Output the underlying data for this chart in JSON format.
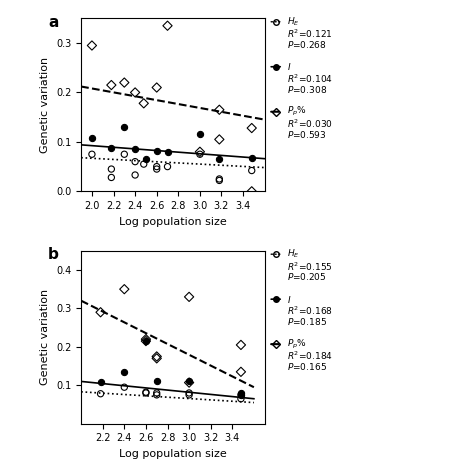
{
  "panel_a": {
    "He_x": [
      2.0,
      2.18,
      2.18,
      2.3,
      2.4,
      2.4,
      2.48,
      2.6,
      2.6,
      2.7,
      3.0,
      3.18,
      3.18,
      3.48
    ],
    "He_y": [
      0.075,
      0.045,
      0.028,
      0.075,
      0.06,
      0.033,
      0.055,
      0.05,
      0.045,
      0.05,
      0.075,
      0.025,
      0.022,
      0.042
    ],
    "I_x": [
      2.0,
      2.18,
      2.3,
      2.4,
      2.5,
      2.6,
      2.7,
      3.0,
      3.18,
      3.48
    ],
    "I_y": [
      0.108,
      0.088,
      0.13,
      0.085,
      0.065,
      0.082,
      0.08,
      0.115,
      0.065,
      0.068
    ],
    "Pp_x": [
      2.0,
      2.18,
      2.3,
      2.4,
      2.48,
      2.6,
      2.7,
      3.0,
      3.18,
      3.18,
      3.48,
      3.48
    ],
    "Pp_y": [
      0.295,
      0.215,
      0.22,
      0.2,
      0.178,
      0.21,
      0.335,
      0.08,
      0.165,
      0.105,
      0.128,
      0.0
    ],
    "He_line": {
      "x0": 1.9,
      "x1": 3.6,
      "y0": 0.068,
      "y1": 0.048
    },
    "I_line": {
      "x0": 1.9,
      "x1": 3.6,
      "y0": 0.094,
      "y1": 0.066
    },
    "Pp_line": {
      "x0": 1.9,
      "x1": 3.6,
      "y0": 0.212,
      "y1": 0.145
    },
    "ylim": [
      0.0,
      0.35
    ],
    "yticks": [
      0.0,
      0.1,
      0.2,
      0.3
    ],
    "xlim": [
      1.9,
      3.6
    ],
    "xticks": [
      2.0,
      2.2,
      2.4,
      2.6,
      2.8,
      3.0,
      3.2,
      3.4
    ],
    "xlabel": "Log population size",
    "ylabel": "Genetic variation",
    "label": "a",
    "legend": {
      "He_label": "$H_E$",
      "He_R2": "$R^2$=0.121",
      "He_P": "$P$=0.268",
      "I_label": "$I$",
      "I_R2": "$R^2$=0.104",
      "I_P": "$P$=0.308",
      "Pp_label": "$\\diamond P_p$%",
      "Pp_R2": "$R^2$=0.030",
      "Pp_P": "$P$=0.593"
    }
  },
  "panel_b": {
    "He_x": [
      2.18,
      2.4,
      2.6,
      2.6,
      2.7,
      2.7,
      3.0,
      3.0,
      3.48,
      3.48
    ],
    "He_y": [
      0.078,
      0.095,
      0.082,
      0.08,
      0.08,
      0.075,
      0.08,
      0.075,
      0.075,
      0.065
    ],
    "I_x": [
      2.18,
      2.4,
      2.6,
      2.7,
      3.0,
      3.48,
      3.48
    ],
    "I_y": [
      0.108,
      0.135,
      0.215,
      0.11,
      0.11,
      0.08,
      0.075
    ],
    "Pp_x": [
      2.18,
      2.4,
      2.6,
      2.6,
      2.7,
      2.7,
      3.0,
      3.0,
      3.48,
      3.48
    ],
    "Pp_y": [
      0.29,
      0.35,
      0.215,
      0.22,
      0.175,
      0.17,
      0.33,
      0.107,
      0.135,
      0.205
    ],
    "He_line": {
      "x0": 2.0,
      "x1": 3.6,
      "y0": 0.083,
      "y1": 0.055
    },
    "I_line": {
      "x0": 2.0,
      "x1": 3.6,
      "y0": 0.11,
      "y1": 0.065
    },
    "Pp_line": {
      "x0": 2.0,
      "x1": 3.6,
      "y0": 0.32,
      "y1": 0.095
    },
    "ylim": [
      0.0,
      0.45
    ],
    "yticks": [
      0.1,
      0.2,
      0.3,
      0.4
    ],
    "xlim": [
      2.0,
      3.7
    ],
    "xticks": [
      2.2,
      2.4,
      2.6,
      2.8,
      3.0,
      3.2,
      3.4
    ],
    "xlabel": "",
    "ylabel": "Genetic variation",
    "label": "b",
    "legend": {
      "He_label": "$H_E$",
      "He_R2": "$R^2$=0.155",
      "He_P": "$P$=0.205",
      "I_label": "$I$",
      "I_R2": "$R^2$=0.168",
      "I_P": "$P$=0.185",
      "Pp_label": "$\\diamond P_p$%",
      "Pp_R2": "$R^2$=0.184",
      "Pp_P": "$P$=0.165"
    }
  }
}
